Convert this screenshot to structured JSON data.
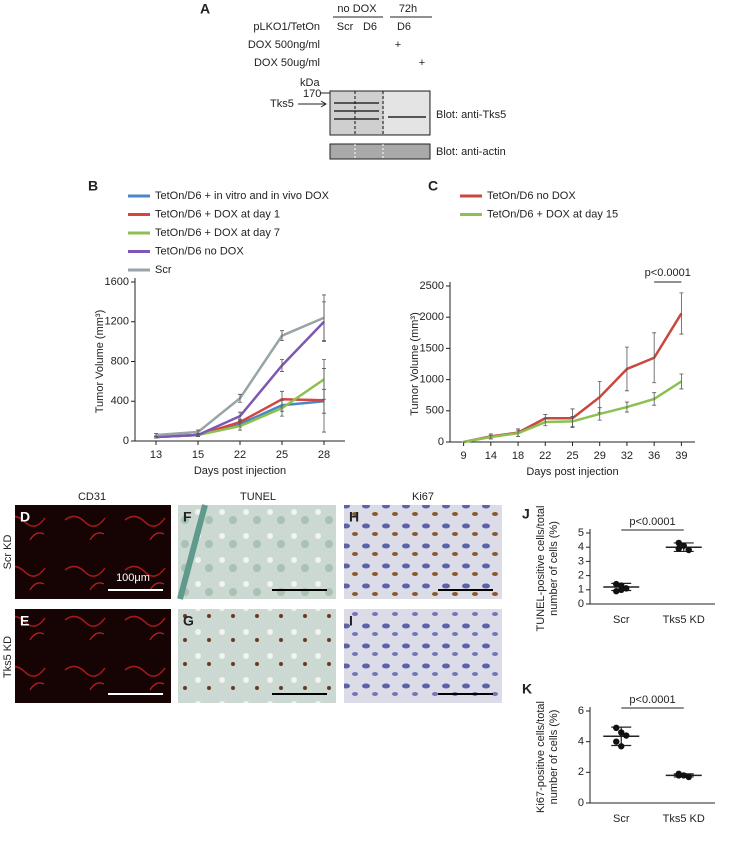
{
  "panel_a": {
    "letter": "A",
    "no_dox": "no DOX",
    "time": "72h",
    "construct": "pLKO1/TetOn",
    "lanes": [
      "Scr",
      "D6",
      "D6"
    ],
    "dox1": "DOX 500ng/ml",
    "dox1_mark": "+",
    "dox2": "DOX 50ug/ml",
    "dox2_mark": "+",
    "kda": "kDa",
    "marker": "170",
    "protein": "Tks5",
    "blot1": "Blot: anti-Tks5",
    "blot2": "Blot: anti-actin"
  },
  "micrographs": {
    "columns": [
      "CD31",
      "TUNEL",
      "Ki67"
    ],
    "rows": [
      "Scr KD",
      "Tks5 KD"
    ],
    "letters": [
      "D",
      "F",
      "H",
      "E",
      "G",
      "I"
    ],
    "scale": "100μm"
  },
  "chart_data": [
    {
      "type": "line",
      "panel": "B",
      "xlabel": "Days post injection",
      "ylabel": "Tumor Volume (mm³)",
      "categories": [
        "13",
        "15",
        "22",
        "25",
        "28"
      ],
      "ylim": [
        0,
        1600
      ],
      "yticks": [
        0,
        400,
        800,
        1200,
        1600
      ],
      "series": [
        {
          "name": "TetOn/D6 + in vitro and in vivo DOX",
          "color": "#4a86c8",
          "values": [
            40,
            60,
            170,
            360,
            400
          ],
          "errors": [
            10,
            10,
            30,
            60,
            120
          ]
        },
        {
          "name": "TetOn/D6 + DOX at day 1",
          "color": "#d2473f",
          "values": [
            40,
            60,
            190,
            420,
            410
          ],
          "errors": [
            10,
            15,
            30,
            80,
            320
          ]
        },
        {
          "name": "TetOn/D6 + DOX at day 7",
          "color": "#8cc152",
          "values": [
            40,
            60,
            150,
            330,
            620
          ],
          "errors": [
            10,
            15,
            40,
            80,
            200
          ]
        },
        {
          "name": "TetOn/D6 no DOX",
          "color": "#7e57b4",
          "values": [
            40,
            60,
            250,
            760,
            1200
          ],
          "errors": [
            10,
            15,
            40,
            60,
            200
          ]
        },
        {
          "name": "Scr",
          "color": "#98a4a8",
          "values": [
            60,
            90,
            430,
            1060,
            1240
          ],
          "errors": [
            15,
            20,
            40,
            50,
            230
          ]
        }
      ]
    },
    {
      "type": "line",
      "panel": "C",
      "xlabel": "Days post injection",
      "ylabel": "Tumor Volume (mm³)",
      "annotation": "p<0.0001",
      "categories": [
        "9",
        "14",
        "18",
        "22",
        "25",
        "29",
        "32",
        "36",
        "39"
      ],
      "ylim": [
        0,
        2500
      ],
      "yticks": [
        0,
        500,
        1000,
        1500,
        2000,
        2500
      ],
      "series": [
        {
          "name": "TetOn/D6 no DOX",
          "color": "#c9473f",
          "values": [
            0,
            90,
            150,
            380,
            380,
            720,
            1170,
            1350,
            2060
          ],
          "errors": [
            0,
            40,
            60,
            60,
            150,
            250,
            350,
            400,
            330
          ]
        },
        {
          "name": "TetOn/D6 + DOX at day 15",
          "color": "#8cc152",
          "values": [
            0,
            80,
            140,
            320,
            330,
            450,
            560,
            690,
            970
          ],
          "errors": [
            0,
            30,
            50,
            60,
            80,
            100,
            80,
            100,
            120
          ]
        }
      ]
    },
    {
      "type": "dot",
      "panel": "J",
      "ylabel_lines": [
        "TUNEL-positive cells/total",
        "number of cells (%)"
      ],
      "annotation": "p<0.0001",
      "categories": [
        "Scr",
        "Tks5 KD"
      ],
      "ylim": [
        0,
        5
      ],
      "yticks": [
        0,
        1,
        2,
        3,
        4,
        5
      ],
      "points": [
        [
          1.4,
          1.3,
          1.1,
          0.9,
          1.0
        ],
        [
          4.3,
          4.1,
          3.8,
          3.9
        ]
      ],
      "mean": [
        1.2,
        4.0
      ],
      "sd": [
        0.25,
        0.3
      ]
    },
    {
      "type": "dot",
      "panel": "K",
      "ylabel_lines": [
        "Ki67-positive cells/total",
        "number of cells (%)"
      ],
      "annotation": "p<0.0001",
      "categories": [
        "Scr",
        "Tks5 KD"
      ],
      "ylim": [
        0,
        6
      ],
      "yticks": [
        0,
        2,
        4,
        6
      ],
      "points": [
        [
          4.9,
          4.6,
          4.4,
          4.0,
          3.7
        ],
        [
          1.9,
          1.8,
          1.7,
          1.8
        ]
      ],
      "mean": [
        4.35,
        1.8
      ],
      "sd": [
        0.6,
        0.1
      ]
    }
  ]
}
